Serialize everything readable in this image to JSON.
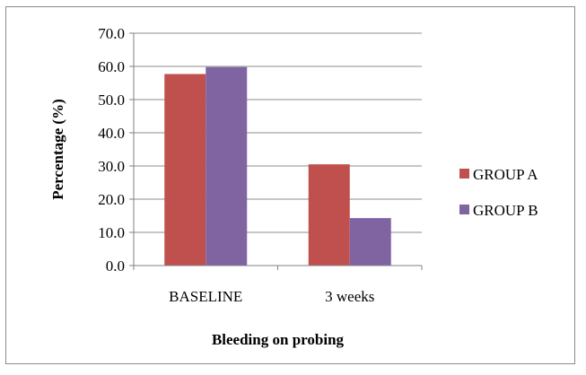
{
  "chart_data": {
    "type": "bar",
    "title": "",
    "xlabel": "Bleeding on probing",
    "ylabel": "Percentage (%)",
    "categories": [
      "BASELINE",
      "3 weeks"
    ],
    "series": [
      {
        "name": "GROUP A",
        "values": [
          57.7,
          30.5
        ],
        "color": "#c0504d"
      },
      {
        "name": "GROUP B",
        "values": [
          59.8,
          14.3
        ],
        "color": "#8064a2"
      }
    ],
    "ylim": [
      0,
      70
    ],
    "yticks": [
      "0.0",
      "10.0",
      "20.0",
      "30.0",
      "40.0",
      "50.0",
      "60.0",
      "70.0"
    ],
    "grid": true,
    "legend_position": "right"
  }
}
